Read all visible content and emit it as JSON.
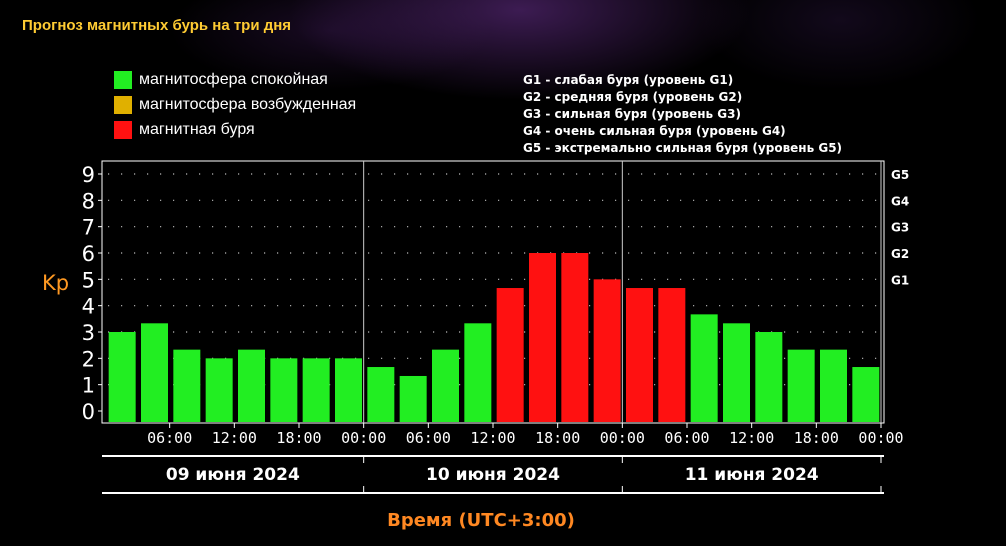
{
  "page": {
    "title": "Прогноз магнитных бурь на три дня"
  },
  "legend": {
    "items": [
      {
        "label": "магнитосфера спокойная",
        "color": "#22ee22"
      },
      {
        "label": "магнитосфера возбужденная",
        "color": "#e0b000"
      },
      {
        "label": "магнитная буря",
        "color": "#ff1111"
      }
    ]
  },
  "storm_levels": [
    "G1 - слабая буря (уровень G1)",
    "G2 - средняя буря (уровень G2)",
    "G3 - сильная буря (уровень G3)",
    "G4 - очень сильная буря (уровень G4)",
    "G5 - экстремально сильная буря (уровень G5)"
  ],
  "chart_data": {
    "type": "bar",
    "title": "Прогноз магнитных бурь на три дня",
    "ylabel": "Kp",
    "xlabel": "Время (UTC+3:00)",
    "ylim": [
      0,
      9
    ],
    "yticks": [
      "0",
      "1",
      "2",
      "3",
      "4",
      "5",
      "6",
      "7",
      "8",
      "9"
    ],
    "g_scale": [
      {
        "label": "G1",
        "kp": 5
      },
      {
        "label": "G2",
        "kp": 6
      },
      {
        "label": "G3",
        "kp": 7
      },
      {
        "label": "G4",
        "kp": 8
      },
      {
        "label": "G5",
        "kp": 9
      }
    ],
    "grid": true,
    "values": [
      3.0,
      3.33,
      2.33,
      2.0,
      2.33,
      2.0,
      2.0,
      2.0,
      1.67,
      1.33,
      2.33,
      3.33,
      4.67,
      6.0,
      6.0,
      5.0,
      4.67,
      4.67,
      3.67,
      3.33,
      3.0,
      2.33,
      2.33,
      1.67
    ],
    "colors": [
      "#22ee22",
      "#22ee22",
      "#22ee22",
      "#22ee22",
      "#22ee22",
      "#22ee22",
      "#22ee22",
      "#22ee22",
      "#22ee22",
      "#22ee22",
      "#22ee22",
      "#22ee22",
      "#ff1111",
      "#ff1111",
      "#ff1111",
      "#ff1111",
      "#ff1111",
      "#ff1111",
      "#22ee22",
      "#22ee22",
      "#22ee22",
      "#22ee22",
      "#22ee22",
      "#22ee22"
    ],
    "time_labels": [
      "06:00",
      "12:00",
      "18:00",
      "00:00",
      "06:00",
      "12:00",
      "18:00",
      "00:00",
      "06:00",
      "12:00",
      "18:00",
      "00:00"
    ],
    "days": [
      "09 июня 2024",
      "10 июня 2024",
      "11 июня 2024"
    ]
  }
}
